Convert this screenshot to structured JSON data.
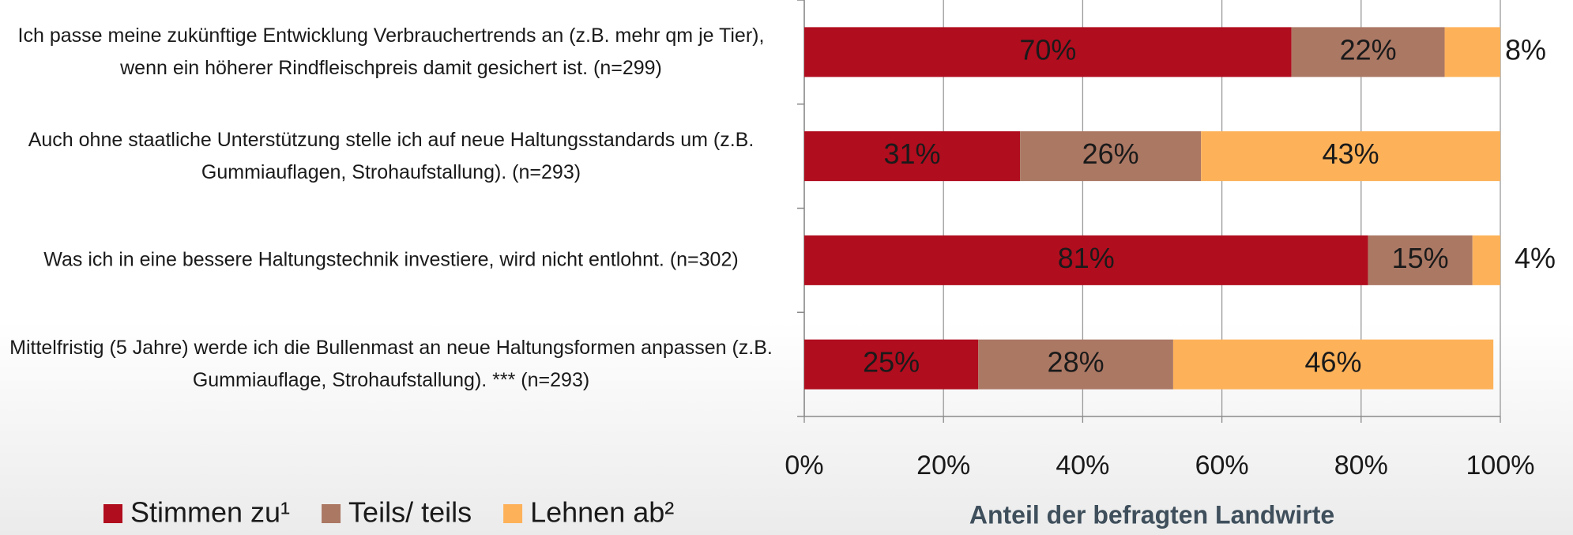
{
  "chart_data": {
    "type": "stacked_barh",
    "categories": [
      "Ich passe meine zukünftige Entwicklung Verbrauchertrends an (z.B. mehr qm je Tier), wenn ein höherer Rindfleischpreis damit gesichert ist. (n=299)",
      "Auch ohne staatliche Unterstützung stelle ich auf neue Haltungsstandards um (z.B. Gummiauflagen, Strohaufstallung). (n=293)",
      "Was ich in eine bessere Haltungstechnik investiere, wird nicht entlohnt. (n=302)",
      "Mittelfristig (5 Jahre) werde ich die Bullenmast an neue Haltungsformen anpassen (z.B. Gummiauflage, Strohaufstallung). *** (n=293)"
    ],
    "series": [
      {
        "name": "Stimmen zu¹",
        "color": "#b00d1e",
        "values": [
          70,
          31,
          81,
          25
        ],
        "value_labels": [
          "70%",
          "31%",
          "81%",
          "25%"
        ]
      },
      {
        "name": "Teils/ teils",
        "color": "#ab7864",
        "values": [
          22,
          26,
          15,
          28
        ],
        "value_labels": [
          "22%",
          "26%",
          "15%",
          "28%"
        ]
      },
      {
        "name": "Lehnen ab²",
        "color": "#fdb25a",
        "values": [
          8,
          43,
          4,
          46
        ],
        "value_labels": [
          "8%",
          "43%",
          "4%",
          "46%"
        ]
      }
    ],
    "xlabel": "Anteil der befragten Landwirte",
    "xlim": [
      0,
      100
    ],
    "xticks": [
      {
        "value": 0,
        "label": "0%"
      },
      {
        "value": 20,
        "label": "20%"
      },
      {
        "value": 40,
        "label": "40%"
      },
      {
        "value": 60,
        "label": "60%"
      },
      {
        "value": 80,
        "label": "80%"
      },
      {
        "value": 100,
        "label": "100%"
      }
    ],
    "grid": true,
    "legend": "bottom-left"
  }
}
